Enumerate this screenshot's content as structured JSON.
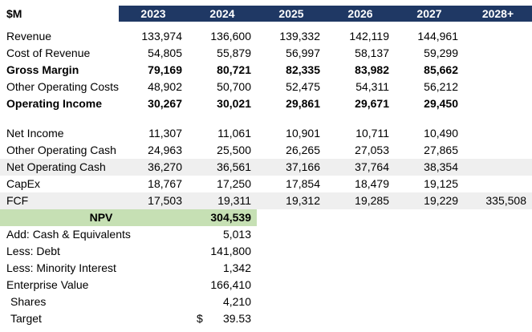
{
  "unit_label": "$M",
  "columns": [
    "2023",
    "2024",
    "2025",
    "2026",
    "2027",
    "2028+"
  ],
  "colors": {
    "header_bg": "#1F3864",
    "header_text": "#FFFFFF",
    "shaded_row_bg": "#EFEFEF",
    "npv_band_bg": "#C6E0B4",
    "body_text": "#000000"
  },
  "forecast_rows": [
    {
      "label": "Revenue",
      "values": [
        "133,974",
        "136,600",
        "139,332",
        "142,119",
        "144,961",
        ""
      ]
    },
    {
      "label": "Cost of Revenue",
      "values": [
        "54,805",
        "55,879",
        "56,997",
        "58,137",
        "59,299",
        ""
      ]
    },
    {
      "label": "Gross Margin",
      "values": [
        "79,169",
        "80,721",
        "82,335",
        "83,982",
        "85,662",
        ""
      ]
    },
    {
      "label": "Other Operating Costs",
      "values": [
        "48,902",
        "50,700",
        "52,475",
        "54,311",
        "56,212",
        ""
      ]
    },
    {
      "label": "Operating Income",
      "values": [
        "30,267",
        "30,021",
        "29,861",
        "29,671",
        "29,450",
        ""
      ]
    },
    {
      "label": "Net Income",
      "values": [
        "11,307",
        "11,061",
        "10,901",
        "10,711",
        "10,490",
        ""
      ]
    },
    {
      "label": "Other Operating Cash",
      "values": [
        "24,963",
        "25,500",
        "26,265",
        "27,053",
        "27,865",
        ""
      ]
    },
    {
      "label": "Net Operating Cash",
      "values": [
        "36,270",
        "36,561",
        "37,166",
        "37,764",
        "38,354",
        ""
      ]
    },
    {
      "label": "CapEx",
      "values": [
        "18,767",
        "17,250",
        "17,854",
        "18,479",
        "19,125",
        ""
      ]
    },
    {
      "label": "FCF",
      "values": [
        "17,503",
        "19,311",
        "19,312",
        "19,285",
        "19,229",
        "335,508"
      ]
    }
  ],
  "npv_row": {
    "label": "NPV",
    "value": "304,539"
  },
  "valuation_rows": [
    {
      "label": "Add: Cash & Equivalents",
      "value": "5,013"
    },
    {
      "label": "Less: Debt",
      "value": "141,800"
    },
    {
      "label": "Less: Minority Interest",
      "value": "1,342"
    },
    {
      "label": "Enterprise Value",
      "value": "166,410"
    },
    {
      "label": "Shares",
      "value": "4,210"
    },
    {
      "label": "Target",
      "currency": "$",
      "value": "39.53"
    }
  ]
}
